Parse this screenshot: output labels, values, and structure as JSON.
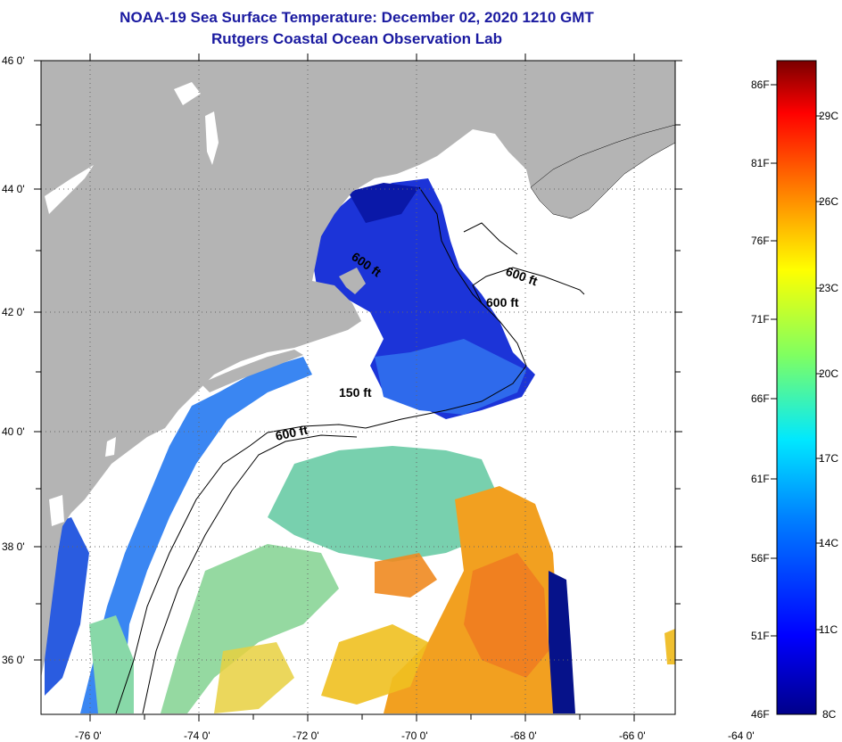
{
  "header": {
    "title": "NOAA-19 Sea Surface Temperature:  December 02, 2020 1210 GMT",
    "subtitle": "Rutgers Coastal Ocean Observation Lab"
  },
  "map": {
    "lat_labels": [
      "46 0'",
      "44 0'",
      "42 0'",
      "40 0'",
      "38 0'",
      "36 0'"
    ],
    "lon_labels": [
      "-76 0'",
      "-74 0'",
      "-72 0'",
      "-70 0'",
      "-68 0'",
      "-66 0'",
      "-64 0'"
    ],
    "contour_labels": [
      "600 ft",
      "600 ft",
      "600 ft",
      "150 ft",
      "600 ft"
    ],
    "colors": {
      "land": "#b4b4b4",
      "no_data": "#ffffff",
      "gulf_of_maine": "#1e3cdc",
      "shelf": "#3a80f0",
      "gulf_stream": "#f0a020"
    }
  },
  "colorbar": {
    "f_labels": [
      "86F",
      "81F",
      "76F",
      "71F",
      "66F",
      "61F",
      "56F",
      "51F",
      "46F"
    ],
    "c_labels": [
      "29C",
      "26C",
      "23C",
      "20C",
      "17C",
      "14C",
      "11C",
      "8C"
    ],
    "range_f": [
      46,
      88
    ],
    "colormap": "jet"
  }
}
